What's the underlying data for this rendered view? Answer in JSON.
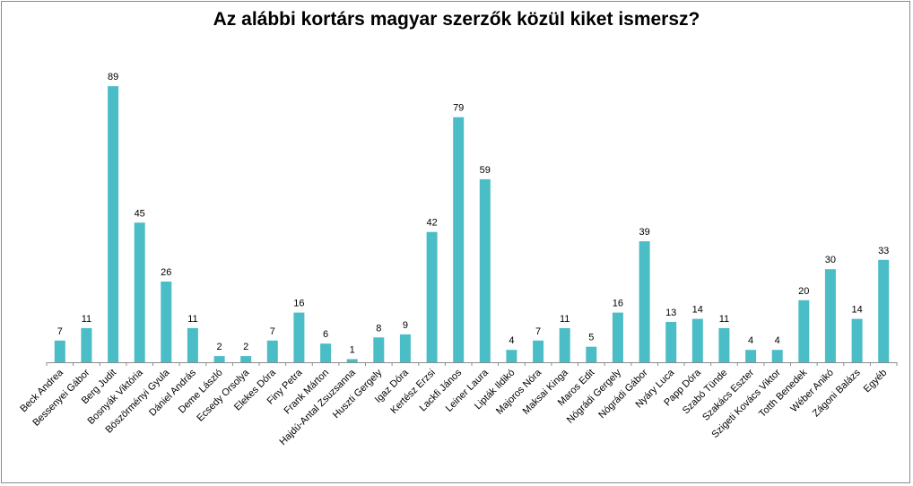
{
  "chart_data": {
    "type": "bar",
    "title": "Az alábbi kortárs magyar szerzők közül kiket ismersz?",
    "categories": [
      "Beck Andrea",
      "Bessenyei Gábor",
      "Berg Judit",
      "Bosnyák Viktória",
      "Böszörményi Gyula",
      "Dániel András",
      "Deme László",
      "Ecsedy Orsolya",
      "Elekes Dóra",
      "Finy Petra",
      "Frank Márton",
      "Hajdú-Antal Zsuzsanna",
      "Huszti Gergely",
      "Igaz Dóra",
      "Kertész Erzsi",
      "Lackfi János",
      "Leiner Laura",
      "Lipták Ildikó",
      "Majoros Nóra",
      "Maksai Kinga",
      "Maros Edit",
      "Nógrádi Gergely",
      "Nógrádi Gábor",
      "Nyáry Luca",
      "Papp Dóra",
      "Szabó Tünde",
      "Szakács Eszter",
      "Szigeti Kovács Viktor",
      "Totth Benedek",
      "Wéber Anikó",
      "Zágoni Balázs",
      "Egyéb"
    ],
    "values": [
      7,
      11,
      89,
      45,
      26,
      11,
      2,
      2,
      7,
      16,
      6,
      1,
      8,
      9,
      42,
      79,
      59,
      4,
      7,
      11,
      5,
      16,
      39,
      13,
      14,
      11,
      4,
      4,
      20,
      30,
      14,
      33
    ],
    "bar_color": "#4bbdc6",
    "axis_color": "#8c8c8c",
    "ylim": [
      0,
      100
    ],
    "grid": false,
    "legend": "none"
  }
}
